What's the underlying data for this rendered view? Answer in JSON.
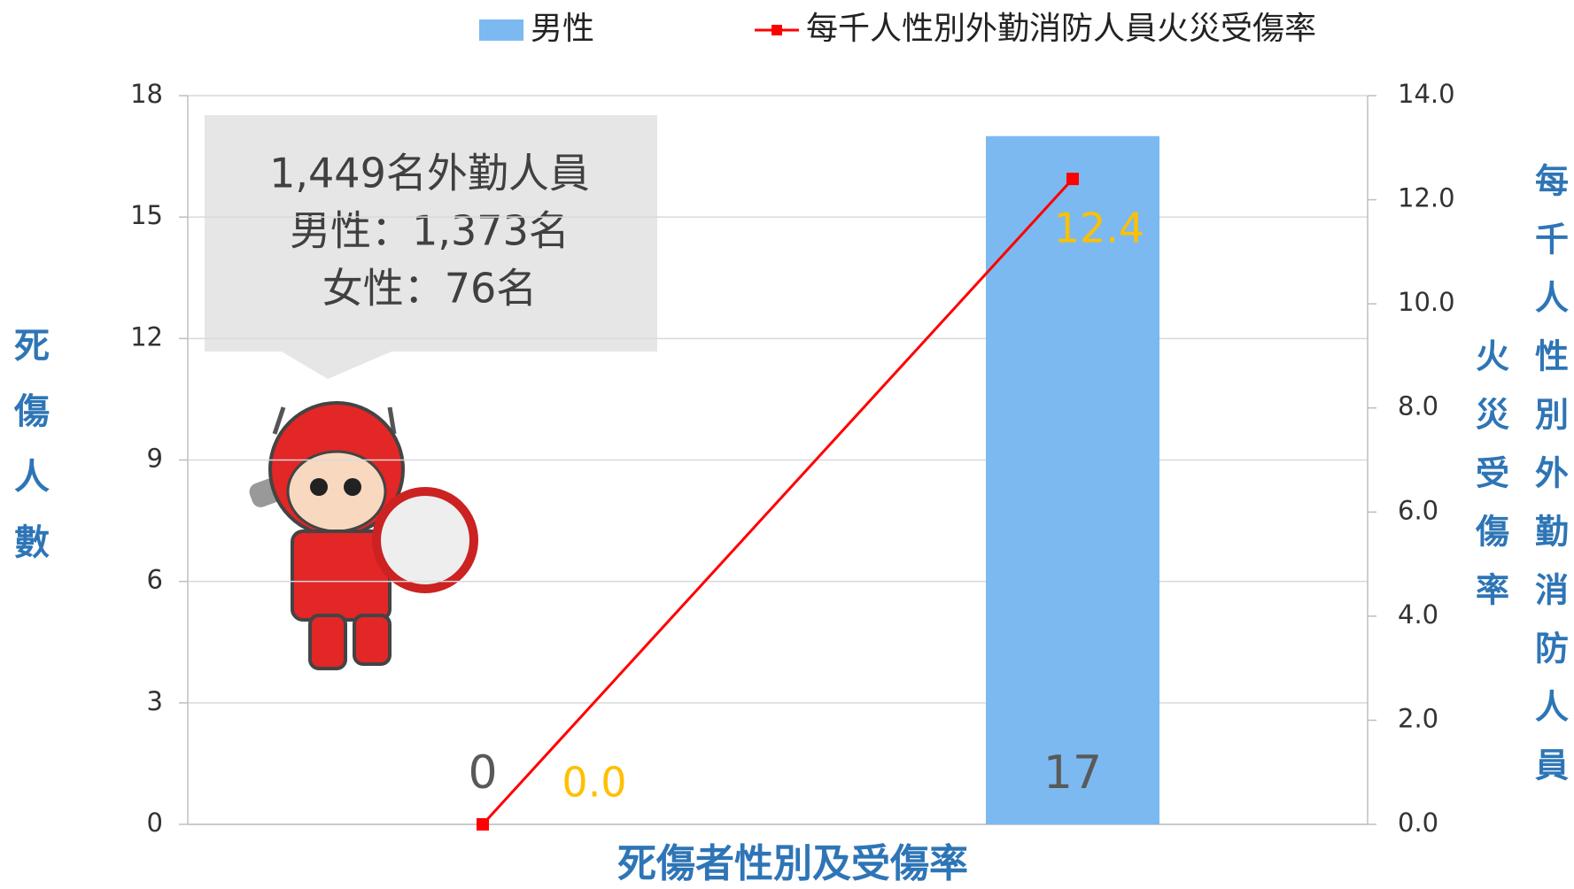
{
  "chart_data": {
    "type": "bar_line",
    "categories": [
      null,
      null
    ],
    "series": [
      {
        "name": "男性",
        "type": "bar",
        "color": "#7cb9f0",
        "values": [
          0,
          17
        ],
        "value_labels": [
          "0",
          "17"
        ]
      },
      {
        "name": "每千人性別外勤消防人員火災受傷率",
        "type": "line",
        "axis": "y2",
        "color": "#ff0000",
        "values": [
          0.0,
          12.4
        ],
        "value_labels": [
          "0.0",
          "12.4"
        ]
      }
    ],
    "xlabel": "死傷者性別及受傷率",
    "ylabel": "死傷人數",
    "y2label": [
      "每千人性別外勤消防人員",
      "火災受傷率"
    ],
    "ylim": [
      0,
      18
    ],
    "yticks": [
      0,
      3,
      6,
      9,
      12,
      15,
      18
    ],
    "y2lim": [
      0,
      14
    ],
    "y2ticks": [
      {
        "value": 0,
        "label": "0.0"
      },
      {
        "value": 2,
        "label": "2.0"
      },
      {
        "value": 4,
        "label": "4.0"
      },
      {
        "value": 6,
        "label": "6.0"
      },
      {
        "value": 8,
        "label": "8.0"
      },
      {
        "value": 10,
        "label": "10.0"
      },
      {
        "value": 12,
        "label": "12.0"
      },
      {
        "value": 14,
        "label": "14.0"
      }
    ],
    "grid": true,
    "legend": "top",
    "annotation": [
      "1,449名外勤人員",
      "男性：1,373名",
      "女性：76名"
    ]
  }
}
